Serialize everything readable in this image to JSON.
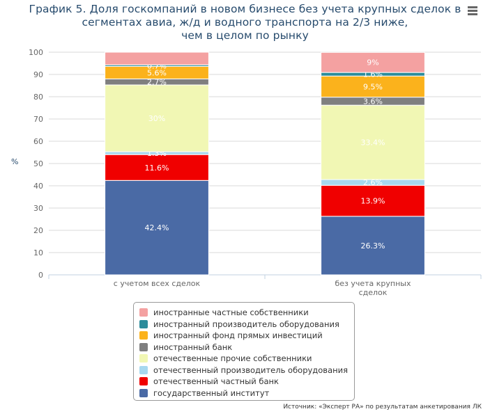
{
  "title_lines": [
    "График 5. Доля госкомпаний в новом бизнесе без учета крупных сделок в",
    "сегментах авиа, ж/д и водного транспорта на 2/3 ниже,",
    "чем в целом по рынку"
  ],
  "source": "Источник: «Эксперт РА» по результатам анкетирования ЛК",
  "chart_data": {
    "type": "bar",
    "stacked": true,
    "title": "График 5. Доля госкомпаний в новом бизнесе без учета крупных сделок в сегментах авиа, ж/д и водного транспорта на 2/3 ниже, чем в целом по рынку",
    "ylabel": "%",
    "ylim": [
      0,
      100
    ],
    "yticks": [
      0,
      10,
      20,
      30,
      40,
      50,
      60,
      70,
      80,
      90,
      100
    ],
    "grid": true,
    "legend_position": "bottom",
    "categories": [
      "с учетом всех сделок",
      "без учета крупных сделок"
    ],
    "category_label_lines": [
      [
        "с учетом всех сделок"
      ],
      [
        "без учета крупных",
        "сделок"
      ]
    ],
    "series": [
      {
        "name": "государственный институт",
        "color": "#4a6aa5",
        "values": [
          42.4,
          26.3
        ],
        "labels": [
          "42.4%",
          "26.3%"
        ]
      },
      {
        "name": "отечественный частный банк",
        "color": "#f00000",
        "values": [
          11.6,
          13.9
        ],
        "labels": [
          "11.6%",
          "13.9%"
        ]
      },
      {
        "name": "отечественный производитель оборудования",
        "color": "#a7d8ef",
        "values": [
          1.3,
          2.6
        ],
        "labels": [
          "1.3%",
          "2.6%"
        ]
      },
      {
        "name": "отечественные прочие собственники",
        "color": "#f1f7b4",
        "values": [
          30,
          33.4
        ],
        "labels": [
          "30%",
          "33.4%"
        ]
      },
      {
        "name": "иностранный банк",
        "color": "#7f7f7f",
        "values": [
          2.7,
          3.6
        ],
        "labels": [
          "2.7%",
          "3.6%"
        ]
      },
      {
        "name": "иностранный фонд прямых инвестиций",
        "color": "#fbb21c",
        "values": [
          5.6,
          9.5
        ],
        "labels": [
          "5.6%",
          "9.5%"
        ]
      },
      {
        "name": "иностранный производитель оборудования",
        "color": "#2c8c9b",
        "values": [
          0.7,
          1.6
        ],
        "labels": [
          "0.7%",
          "1.6%"
        ]
      },
      {
        "name": "иностранные частные собственники",
        "color": "#f4a1a1",
        "values": [
          5.7,
          9
        ],
        "labels": [
          "",
          "9%"
        ]
      }
    ]
  }
}
